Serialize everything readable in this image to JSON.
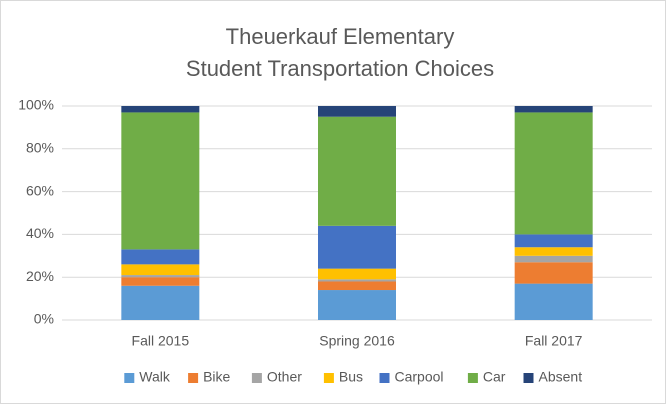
{
  "chart_data": {
    "type": "bar",
    "stacked": true,
    "title": [
      "Theuerkauf Elementary",
      "Student Transportation Choices"
    ],
    "categories": [
      "Fall 2015",
      "Spring 2016",
      "Fall 2017"
    ],
    "series": [
      {
        "name": "Walk",
        "color": "#5b9bd5",
        "values": [
          16,
          14,
          17
        ]
      },
      {
        "name": "Bike",
        "color": "#ed7d31",
        "values": [
          4,
          4,
          10
        ]
      },
      {
        "name": "Other",
        "color": "#a5a5a5",
        "values": [
          1,
          1,
          3
        ]
      },
      {
        "name": "Bus",
        "color": "#ffc000",
        "values": [
          5,
          5,
          4
        ]
      },
      {
        "name": "Carpool",
        "color": "#4472c4",
        "values": [
          7,
          20,
          6
        ]
      },
      {
        "name": "Car",
        "color": "#70ad47",
        "values": [
          64,
          51,
          57
        ]
      },
      {
        "name": "Absent",
        "color": "#264478",
        "values": [
          3,
          5,
          3
        ]
      }
    ],
    "ylim": [
      0,
      100
    ],
    "yticks": [
      {
        "value": 0,
        "label": "0%"
      },
      {
        "value": 20,
        "label": "20%"
      },
      {
        "value": 40,
        "label": "40%"
      },
      {
        "value": 60,
        "label": "60%"
      },
      {
        "value": 80,
        "label": "80%"
      },
      {
        "value": 100,
        "label": "100%"
      }
    ],
    "grid": true,
    "legend": "bottom"
  }
}
